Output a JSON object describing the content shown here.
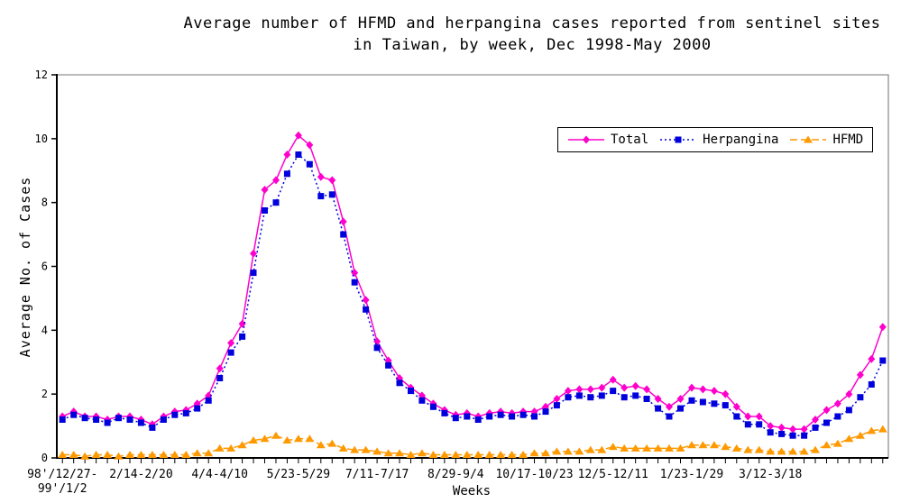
{
  "chart_data": {
    "type": "line",
    "title_line1": "Average number of HFMD and herpangina cases reported from sentinel sites",
    "title_line2": "in Taiwan, by week, Dec 1998-May 2000",
    "xlabel": "Weeks",
    "ylabel": "Average No. of Cases",
    "ylim": [
      0,
      12
    ],
    "y_ticks": [
      0,
      2,
      4,
      6,
      8,
      10,
      12
    ],
    "n_points": 74,
    "grid": false,
    "legend_position": "top-right",
    "frame_color": "#909090",
    "axis_color": "#000000",
    "x_tick_positions": [
      0,
      7,
      14,
      21,
      28,
      35,
      42,
      49,
      56,
      63
    ],
    "x_tick_labels": [
      [
        "98'/12/27-",
        "99'/1/2"
      ],
      "2/14-2/20",
      "4/4-4/10",
      "5/23-5/29",
      "7/11-7/17",
      "8/29-9/4",
      "10/17-10/23",
      "12/5-12/11",
      "1/23-1/29",
      "3/12-3/18"
    ],
    "series": [
      {
        "name": "Total",
        "color": "#ff00cc",
        "line_style": "solid",
        "marker": "diamond",
        "values": [
          1.3,
          1.45,
          1.3,
          1.3,
          1.2,
          1.3,
          1.3,
          1.2,
          1.05,
          1.3,
          1.45,
          1.5,
          1.7,
          1.95,
          2.8,
          3.6,
          4.2,
          6.4,
          8.4,
          8.7,
          9.5,
          10.1,
          9.8,
          8.8,
          8.7,
          7.4,
          5.8,
          4.95,
          3.65,
          3.05,
          2.5,
          2.2,
          1.95,
          1.7,
          1.5,
          1.35,
          1.4,
          1.3,
          1.4,
          1.45,
          1.4,
          1.45,
          1.45,
          1.6,
          1.85,
          2.1,
          2.15,
          2.15,
          2.2,
          2.45,
          2.2,
          2.25,
          2.15,
          1.85,
          1.6,
          1.85,
          2.2,
          2.15,
          2.1,
          2.0,
          1.6,
          1.3,
          1.3,
          1.0,
          0.95,
          0.9,
          0.9,
          1.2,
          1.5,
          1.7,
          2.0,
          2.6,
          3.1,
          4.1
        ]
      },
      {
        "name": "Herpangina",
        "color": "#0000dd",
        "line_style": "dotted",
        "marker": "square",
        "values": [
          1.2,
          1.35,
          1.25,
          1.2,
          1.1,
          1.25,
          1.2,
          1.1,
          0.95,
          1.2,
          1.35,
          1.4,
          1.55,
          1.8,
          2.5,
          3.3,
          3.8,
          5.8,
          7.75,
          8.0,
          8.9,
          9.5,
          9.2,
          8.2,
          8.25,
          7.0,
          5.5,
          4.65,
          3.45,
          2.9,
          2.35,
          2.1,
          1.8,
          1.6,
          1.4,
          1.25,
          1.3,
          1.2,
          1.3,
          1.35,
          1.3,
          1.35,
          1.3,
          1.45,
          1.65,
          1.9,
          1.95,
          1.9,
          1.95,
          2.1,
          1.9,
          1.95,
          1.85,
          1.55,
          1.3,
          1.55,
          1.8,
          1.75,
          1.7,
          1.65,
          1.3,
          1.05,
          1.05,
          0.8,
          0.75,
          0.7,
          0.7,
          0.95,
          1.1,
          1.3,
          1.5,
          1.9,
          2.3,
          3.05
        ]
      },
      {
        "name": "HFMD",
        "color": "#ff9900",
        "line_style": "dashed",
        "marker": "triangle",
        "values": [
          0.1,
          0.1,
          0.05,
          0.1,
          0.1,
          0.05,
          0.1,
          0.1,
          0.1,
          0.1,
          0.1,
          0.1,
          0.15,
          0.15,
          0.3,
          0.3,
          0.4,
          0.55,
          0.6,
          0.7,
          0.55,
          0.6,
          0.6,
          0.4,
          0.45,
          0.3,
          0.25,
          0.25,
          0.2,
          0.15,
          0.15,
          0.1,
          0.15,
          0.1,
          0.1,
          0.1,
          0.1,
          0.1,
          0.1,
          0.1,
          0.1,
          0.1,
          0.15,
          0.15,
          0.2,
          0.2,
          0.2,
          0.25,
          0.25,
          0.35,
          0.3,
          0.3,
          0.3,
          0.3,
          0.3,
          0.3,
          0.4,
          0.4,
          0.4,
          0.35,
          0.3,
          0.25,
          0.25,
          0.2,
          0.2,
          0.2,
          0.2,
          0.25,
          0.4,
          0.45,
          0.6,
          0.7,
          0.85,
          0.9
        ]
      }
    ]
  }
}
